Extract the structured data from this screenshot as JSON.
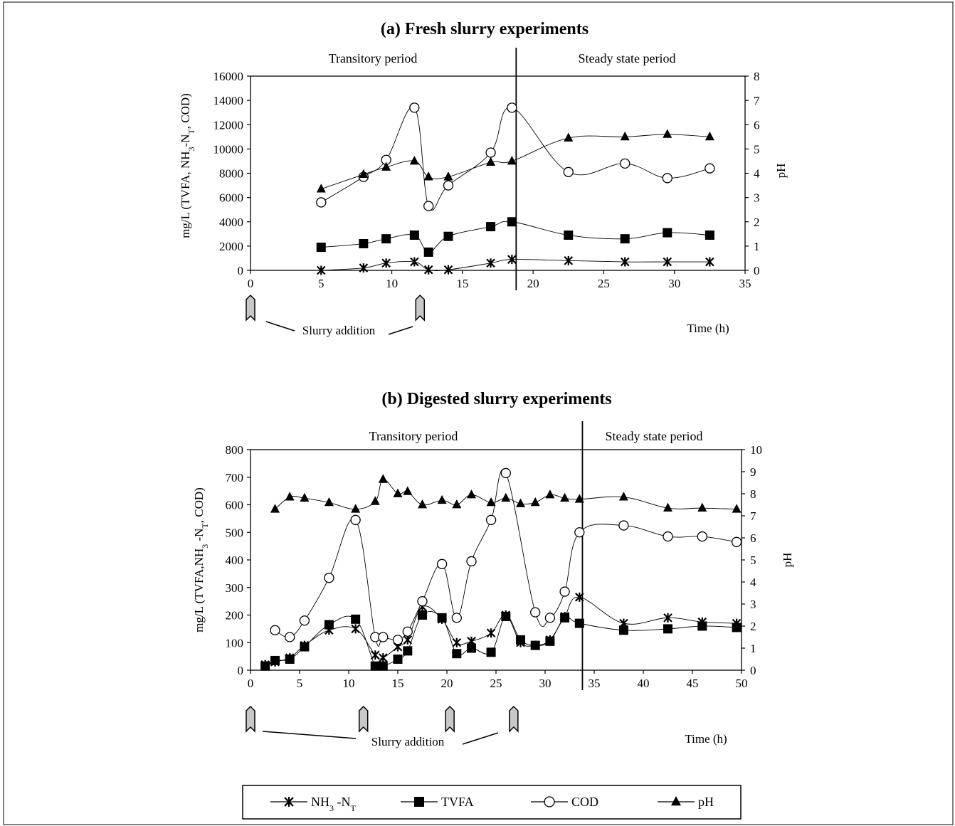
{
  "chart_data": [
    {
      "type": "line",
      "title": "(a) Fresh slurry experiments",
      "xlabel": "Time (h)",
      "ylabel": "mg/L (TVFA, NH3-NT, COD)",
      "ylabel_right": "pH",
      "xlim": [
        0,
        35
      ],
      "ylim": [
        0,
        16000
      ],
      "ylim_right": [
        0,
        8
      ],
      "x_ticks": [
        "0",
        "5",
        "10",
        "15",
        "20",
        "25",
        "30",
        "35"
      ],
      "y_ticks": [
        "0",
        "2000",
        "4000",
        "6000",
        "8000",
        "10000",
        "12000",
        "14000",
        "16000"
      ],
      "y_ticks_right": [
        "0",
        "1",
        "2",
        "3",
        "4",
        "5",
        "6",
        "7",
        "8"
      ],
      "periods": [
        "Transitory period",
        "Steady state period"
      ],
      "period_boundary": 18.8,
      "annotation": "Slurry addition",
      "slurry_addition_times": [
        0,
        12
      ],
      "series": [
        {
          "name": "NH3 -NT",
          "axis": "left",
          "marker": "asterisk",
          "x": [
            5,
            8,
            9.6,
            11.6,
            12.6,
            14,
            17,
            18.5,
            22.5,
            26.5,
            29.5,
            32.5
          ],
          "y": [
            0,
            200,
            600,
            700,
            50,
            50,
            600,
            900,
            800,
            700,
            700,
            700
          ]
        },
        {
          "name": "TVFA",
          "axis": "left",
          "marker": "square",
          "x": [
            5,
            8,
            9.6,
            11.6,
            12.6,
            14,
            17,
            18.5,
            22.5,
            26.5,
            29.5,
            32.5
          ],
          "y": [
            1900,
            2200,
            2600,
            2900,
            1500,
            2800,
            3600,
            4000,
            2900,
            2600,
            3100,
            2900
          ]
        },
        {
          "name": "COD",
          "axis": "left",
          "marker": "circle",
          "x": [
            5,
            8,
            9.6,
            11.6,
            12.6,
            14,
            17,
            18.5,
            22.5,
            26.5,
            29.5,
            32.5
          ],
          "y": [
            5600,
            7700,
            9100,
            13400,
            5300,
            7000,
            9700,
            13400,
            8100,
            8800,
            7600,
            8400
          ]
        },
        {
          "name": "pH",
          "axis": "right",
          "marker": "triangle",
          "x": [
            5,
            8,
            9.6,
            11.6,
            12.6,
            14,
            17,
            18.5,
            22.5,
            26.5,
            29.5,
            32.5
          ],
          "y": [
            3.35,
            3.95,
            4.25,
            4.5,
            3.85,
            3.85,
            4.45,
            4.5,
            5.45,
            5.5,
            5.6,
            5.5
          ]
        }
      ]
    },
    {
      "type": "line",
      "title": "(b) Digested slurry experiments",
      "xlabel": "Time (h)",
      "ylabel": "mg/L (TVFA,NH3 -NT, COD)",
      "ylabel_right": "pH",
      "xlim": [
        0,
        50
      ],
      "ylim": [
        0,
        800
      ],
      "ylim_right": [
        0,
        10
      ],
      "x_ticks": [
        "0",
        "5",
        "10",
        "15",
        "20",
        "25",
        "30",
        "35",
        "40",
        "45",
        "50"
      ],
      "y_ticks": [
        "0",
        "100",
        "200",
        "300",
        "400",
        "500",
        "600",
        "700",
        "800"
      ],
      "y_ticks_right": [
        "0",
        "1",
        "2",
        "3",
        "4",
        "5",
        "6",
        "7",
        "8",
        "9",
        "10"
      ],
      "periods": [
        "Transitory period",
        "Steady state period"
      ],
      "period_boundary": 33.8,
      "annotation": "Slurry addition",
      "slurry_addition_times": [
        0,
        11.5,
        20.3,
        26.8
      ],
      "series": [
        {
          "name": "NH3 -NT",
          "axis": "left",
          "marker": "asterisk",
          "x": [
            1.5,
            2.5,
            4,
            5.5,
            8,
            10.7,
            12.7,
            13.5,
            15,
            16,
            17.5,
            19.5,
            21,
            22.5,
            24.5,
            26,
            27.5,
            29,
            30.5,
            32,
            33.5,
            38,
            42.5,
            46,
            49.5
          ],
          "y": [
            20,
            30,
            45,
            90,
            145,
            150,
            55,
            45,
            85,
            110,
            230,
            185,
            100,
            105,
            135,
            200,
            100,
            90,
            110,
            195,
            265,
            170,
            190,
            175,
            170
          ]
        },
        {
          "name": "TVFA",
          "axis": "left",
          "marker": "square",
          "x": [
            1.5,
            2.5,
            4,
            5.5,
            8,
            10.7,
            12.7,
            13.5,
            15,
            16,
            17.5,
            19.5,
            21,
            22.5,
            24.5,
            26,
            27.5,
            29,
            30.5,
            32,
            33.5,
            38,
            42.5,
            46,
            49.5
          ],
          "y": [
            15,
            35,
            40,
            85,
            165,
            185,
            15,
            15,
            40,
            70,
            200,
            190,
            60,
            80,
            65,
            195,
            110,
            90,
            105,
            190,
            170,
            145,
            150,
            160,
            155
          ]
        },
        {
          "name": "COD",
          "axis": "left",
          "marker": "circle",
          "x": [
            2.5,
            4,
            5.5,
            8,
            10.7,
            12.7,
            13.5,
            15,
            16,
            17.5,
            19.5,
            21,
            22.5,
            24.5,
            26,
            29,
            30.5,
            32,
            33.5,
            38,
            42.5,
            46,
            49.5
          ],
          "y": [
            145,
            120,
            180,
            335,
            545,
            120,
            120,
            110,
            140,
            250,
            385,
            190,
            395,
            545,
            715,
            210,
            190,
            285,
            500,
            525,
            485,
            485,
            465
          ]
        },
        {
          "name": "pH",
          "axis": "right",
          "marker": "triangle",
          "x": [
            2.5,
            4,
            5.5,
            8,
            10.7,
            12.7,
            13.5,
            15,
            16,
            17.5,
            19.5,
            21,
            22.5,
            24.5,
            26,
            27.5,
            29,
            30.5,
            32,
            33.5,
            38,
            42.5,
            46,
            49.5
          ],
          "y": [
            7.3,
            7.85,
            7.8,
            7.6,
            7.3,
            7.65,
            8.65,
            8.0,
            8.1,
            7.5,
            7.7,
            7.5,
            7.95,
            7.6,
            7.8,
            7.55,
            7.6,
            7.95,
            7.8,
            7.75,
            7.85,
            7.35,
            7.35,
            7.3
          ]
        }
      ]
    }
  ],
  "legend": [
    {
      "name": "NH3 -NT",
      "marker": "asterisk"
    },
    {
      "name": "TVFA",
      "marker": "square"
    },
    {
      "name": "COD",
      "marker": "circle"
    },
    {
      "name": "pH",
      "marker": "triangle"
    }
  ]
}
